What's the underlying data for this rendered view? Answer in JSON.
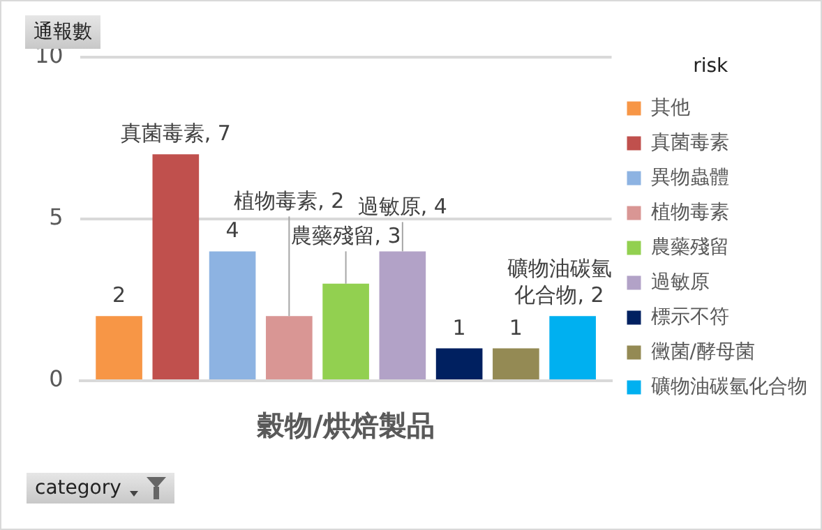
{
  "chart_data": {
    "type": "bar",
    "ylabel": "通報數",
    "xlabel": "category",
    "legend_title": "risk",
    "legend": "right",
    "grid": "y",
    "categories": [
      "穀物/烘焙製品"
    ],
    "ylim": [
      0,
      10
    ],
    "yticks": [
      0,
      5,
      10
    ],
    "series": [
      {
        "name": "其他",
        "color": "#f79646",
        "values": [
          2
        ],
        "value_labels": [
          "2"
        ]
      },
      {
        "name": "真菌毒素",
        "color": "#c0504d",
        "values": [
          7
        ],
        "value_labels": [
          "真菌毒素, 7"
        ]
      },
      {
        "name": "異物蟲體",
        "color": "#8db3e2",
        "values": [
          4
        ],
        "value_labels": [
          "4"
        ]
      },
      {
        "name": "植物毒素",
        "color": "#d99694",
        "values": [
          2
        ],
        "value_labels": [
          "植物毒素, 2"
        ]
      },
      {
        "name": "農藥殘留",
        "color": "#92d050",
        "values": [
          3
        ],
        "value_labels": [
          "農藥殘留, 3"
        ]
      },
      {
        "name": "過敏原",
        "color": "#b2a2c7",
        "values": [
          4
        ],
        "value_labels": [
          "過敏原, 4"
        ]
      },
      {
        "name": "標示不符",
        "color": "#002060",
        "values": [
          1
        ],
        "value_labels": [
          "1"
        ]
      },
      {
        "name": "黴菌/酵母菌",
        "color": "#948a54",
        "values": [
          1
        ],
        "value_labels": [
          "1"
        ]
      },
      {
        "name": "礦物油碳氫化合物",
        "color": "#00b0f0",
        "values": [
          2
        ],
        "value_labels": [
          "礦物油碳氫化合物, 2"
        ]
      }
    ]
  }
}
